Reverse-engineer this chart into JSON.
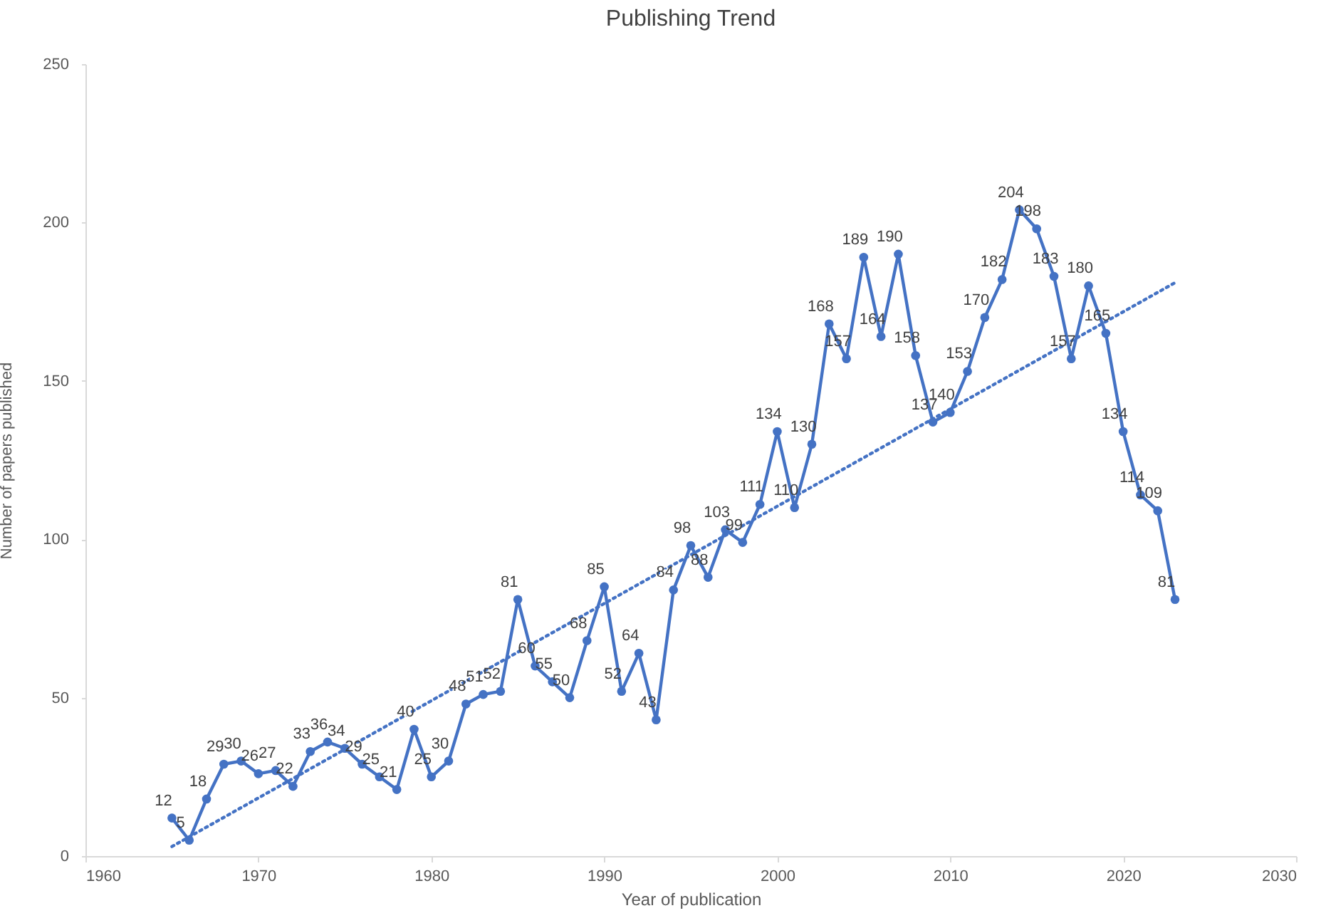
{
  "chart_data": {
    "type": "line",
    "title": "Publishing Trend",
    "xlabel": "Year of publication",
    "ylabel": "Number of papers published",
    "x": [
      1965,
      1966,
      1967,
      1968,
      1969,
      1970,
      1971,
      1972,
      1973,
      1974,
      1975,
      1976,
      1977,
      1978,
      1979,
      1980,
      1981,
      1982,
      1983,
      1984,
      1985,
      1986,
      1987,
      1988,
      1989,
      1990,
      1991,
      1992,
      1993,
      1994,
      1995,
      1996,
      1997,
      1998,
      1999,
      2000,
      2001,
      2002,
      2003,
      2004,
      2005,
      2006,
      2007,
      2008,
      2009,
      2010,
      2011,
      2012,
      2013,
      2014,
      2015,
      2016,
      2017,
      2018,
      2019,
      2020,
      2021,
      2022,
      2023
    ],
    "series": [
      {
        "color": "#4472c4",
        "marker": "circle",
        "line_style": "solid",
        "data_labels": true,
        "values": [
          12,
          5,
          18,
          29,
          30,
          26,
          27,
          22,
          33,
          36,
          34,
          29,
          25,
          21,
          40,
          25,
          30,
          48,
          51,
          52,
          81,
          60,
          55,
          50,
          68,
          85,
          52,
          64,
          43,
          84,
          98,
          88,
          103,
          99,
          111,
          134,
          110,
          130,
          168,
          157,
          189,
          164,
          190,
          158,
          137,
          140,
          153,
          170,
          182,
          204,
          198,
          183,
          157,
          180,
          165,
          134,
          114,
          109,
          81
        ]
      },
      {
        "type": "line",
        "color": "#4472c4",
        "marker": "none",
        "line_style": "dotted",
        "x": [
          1965,
          2023
        ],
        "values": [
          3,
          181
        ]
      }
    ],
    "xlim": [
      1960,
      2030
    ],
    "xticks": [
      1960,
      1970,
      1980,
      1990,
      2000,
      2010,
      2020,
      2030
    ],
    "ylim": [
      0,
      250
    ],
    "yticks": [
      0,
      50,
      100,
      150,
      200,
      250
    ],
    "grid": false
  }
}
